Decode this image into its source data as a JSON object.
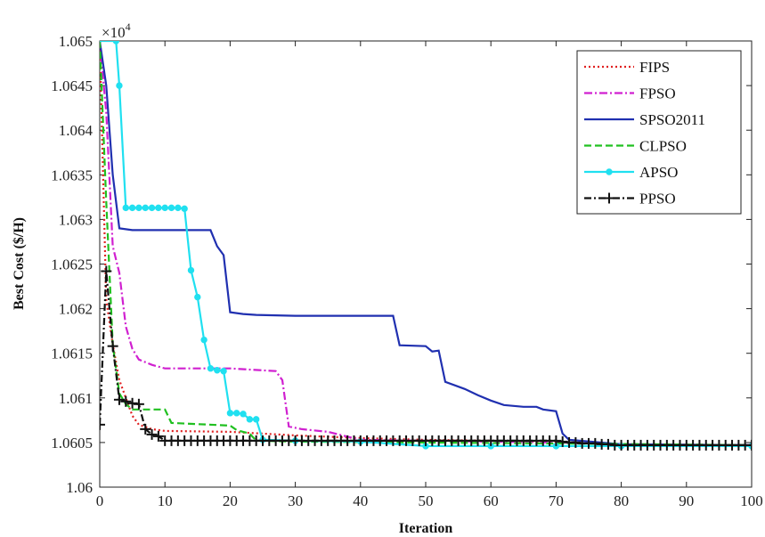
{
  "chart_data": {
    "type": "line",
    "title": "",
    "xlabel": "Iteration",
    "ylabel": "Best Cost ($/H)",
    "multiplier_label": "×10",
    "multiplier_exponent": "4",
    "xlim": [
      0,
      100
    ],
    "ylim": [
      1.06,
      1.065
    ],
    "xticks": [
      "0",
      "10",
      "20",
      "30",
      "40",
      "50",
      "60",
      "70",
      "80",
      "90",
      "100"
    ],
    "yticks": [
      "1.06",
      "1.0605",
      "1.061",
      "1.0615",
      "1.062",
      "1.0625",
      "1.063",
      "1.0635",
      "1.064",
      "1.0645",
      "1.065"
    ],
    "grid": false,
    "legend_position": "top-right",
    "series": [
      {
        "name": "FIPS",
        "color": "#e02020",
        "dash": "2,3",
        "marker": "none",
        "points": [
          [
            0,
            1.065
          ],
          [
            1,
            1.0621
          ],
          [
            2,
            1.0616
          ],
          [
            3,
            1.0612
          ],
          [
            4,
            1.061
          ],
          [
            5,
            1.0608
          ],
          [
            6,
            1.0607
          ],
          [
            8,
            1.06065
          ],
          [
            10,
            1.06063
          ],
          [
            20,
            1.06062
          ],
          [
            30,
            1.06058
          ],
          [
            40,
            1.06055
          ],
          [
            50,
            1.06053
          ],
          [
            60,
            1.06052
          ],
          [
            70,
            1.06051
          ],
          [
            75,
            1.06049
          ],
          [
            80,
            1.06048
          ],
          [
            100,
            1.06047
          ]
        ]
      },
      {
        "name": "FPSO",
        "color": "#d020d0",
        "dash": "9,3,2,3",
        "marker": "none",
        "points": [
          [
            0,
            1.065
          ],
          [
            1,
            1.0642
          ],
          [
            2,
            1.0627
          ],
          [
            3,
            1.0624
          ],
          [
            4,
            1.0618
          ],
          [
            5,
            1.06155
          ],
          [
            6,
            1.06143
          ],
          [
            8,
            1.06137
          ],
          [
            10,
            1.06133
          ],
          [
            20,
            1.06133
          ],
          [
            27,
            1.0613
          ],
          [
            28,
            1.0612
          ],
          [
            29,
            1.06068
          ],
          [
            31,
            1.06065
          ],
          [
            35,
            1.06062
          ],
          [
            40,
            1.06053
          ],
          [
            50,
            1.06052
          ],
          [
            60,
            1.06051
          ],
          [
            70,
            1.0605
          ],
          [
            80,
            1.06048
          ],
          [
            100,
            1.06047
          ]
        ]
      },
      {
        "name": "SPSO2011",
        "color": "#2030b0",
        "dash": "",
        "marker": "none",
        "points": [
          [
            0,
            1.065
          ],
          [
            1,
            1.0645
          ],
          [
            2,
            1.0635
          ],
          [
            3,
            1.0629
          ],
          [
            5,
            1.06288
          ],
          [
            10,
            1.06288
          ],
          [
            17,
            1.06288
          ],
          [
            18,
            1.0627
          ],
          [
            19,
            1.0626
          ],
          [
            20,
            1.06196
          ],
          [
            22,
            1.06194
          ],
          [
            24,
            1.06193
          ],
          [
            30,
            1.06192
          ],
          [
            45,
            1.06192
          ],
          [
            46,
            1.06159
          ],
          [
            50,
            1.06158
          ],
          [
            51,
            1.06152
          ],
          [
            52,
            1.06153
          ],
          [
            53,
            1.06118
          ],
          [
            56,
            1.0611
          ],
          [
            58,
            1.06103
          ],
          [
            60,
            1.06097
          ],
          [
            62,
            1.06092
          ],
          [
            65,
            1.0609
          ],
          [
            67,
            1.0609
          ],
          [
            68,
            1.06087
          ],
          [
            70,
            1.06085
          ],
          [
            71,
            1.0606
          ],
          [
            72,
            1.06053
          ],
          [
            80,
            1.06048
          ],
          [
            100,
            1.06047
          ]
        ]
      },
      {
        "name": "CLPSO",
        "color": "#20c020",
        "dash": "8,4",
        "marker": "none",
        "points": [
          [
            0,
            1.065
          ],
          [
            1,
            1.0632
          ],
          [
            2,
            1.0616
          ],
          [
            3,
            1.06105
          ],
          [
            4,
            1.06093
          ],
          [
            5,
            1.06087
          ],
          [
            10,
            1.06087
          ],
          [
            11,
            1.06072
          ],
          [
            20,
            1.06069
          ],
          [
            21,
            1.06064
          ],
          [
            22,
            1.06062
          ],
          [
            23,
            1.0606
          ],
          [
            24,
            1.06052
          ],
          [
            30,
            1.06051
          ],
          [
            50,
            1.0605
          ],
          [
            70,
            1.06049
          ],
          [
            100,
            1.06047
          ]
        ]
      },
      {
        "name": "APSO",
        "color": "#20e0f0",
        "dash": "",
        "marker": "dot",
        "points": [
          [
            0,
            1.065
          ],
          [
            2.5,
            1.065
          ],
          [
            3,
            1.0645
          ],
          [
            4,
            1.06313
          ],
          [
            5,
            1.06313
          ],
          [
            6,
            1.06313
          ],
          [
            7,
            1.06313
          ],
          [
            8,
            1.06313
          ],
          [
            9,
            1.06313
          ],
          [
            10,
            1.06313
          ],
          [
            11,
            1.06313
          ],
          [
            12,
            1.06313
          ],
          [
            13,
            1.06312
          ],
          [
            14,
            1.06243
          ],
          [
            15,
            1.06213
          ],
          [
            16,
            1.06165
          ],
          [
            17,
            1.06133
          ],
          [
            18,
            1.06131
          ],
          [
            19,
            1.0613
          ],
          [
            20,
            1.06083
          ],
          [
            21,
            1.06083
          ],
          [
            22,
            1.06082
          ],
          [
            23,
            1.06076
          ],
          [
            24,
            1.06076
          ],
          [
            25,
            1.06053
          ],
          [
            30,
            1.06052
          ],
          [
            40,
            1.06051
          ],
          [
            50,
            1.06046
          ],
          [
            60,
            1.06046
          ],
          [
            70,
            1.06046
          ],
          [
            80,
            1.06046
          ],
          [
            100,
            1.06046
          ]
        ]
      },
      {
        "name": "PPSO",
        "color": "#111111",
        "dash": "8,3,2,3",
        "marker": "plus",
        "points": [
          [
            0,
            1.0607
          ],
          [
            1,
            1.06242
          ],
          [
            2,
            1.06158
          ],
          [
            3,
            1.06098
          ],
          [
            4,
            1.06096
          ],
          [
            5,
            1.06094
          ],
          [
            6,
            1.06093
          ],
          [
            7,
            1.06065
          ],
          [
            8,
            1.06059
          ],
          [
            9,
            1.06057
          ],
          [
            10,
            1.06052
          ],
          [
            11,
            1.06052
          ],
          [
            12,
            1.06052
          ],
          [
            13,
            1.06052
          ],
          [
            14,
            1.06052
          ],
          [
            15,
            1.06052
          ],
          [
            16,
            1.06052
          ],
          [
            17,
            1.06052
          ],
          [
            18,
            1.06052
          ],
          [
            19,
            1.06052
          ],
          [
            20,
            1.06052
          ],
          [
            21,
            1.06052
          ],
          [
            22,
            1.06052
          ],
          [
            23,
            1.06052
          ],
          [
            24,
            1.06052
          ],
          [
            25,
            1.06052
          ],
          [
            26,
            1.06052
          ],
          [
            27,
            1.06052
          ],
          [
            28,
            1.06052
          ],
          [
            29,
            1.06052
          ],
          [
            30,
            1.06052
          ],
          [
            31,
            1.06052
          ],
          [
            32,
            1.06052
          ],
          [
            33,
            1.06052
          ],
          [
            34,
            1.06052
          ],
          [
            35,
            1.06052
          ],
          [
            36,
            1.06052
          ],
          [
            37,
            1.06052
          ],
          [
            38,
            1.06052
          ],
          [
            39,
            1.06052
          ],
          [
            40,
            1.06052
          ],
          [
            41,
            1.06052
          ],
          [
            42,
            1.06052
          ],
          [
            43,
            1.06052
          ],
          [
            44,
            1.06052
          ],
          [
            45,
            1.06052
          ],
          [
            46,
            1.06052
          ],
          [
            47,
            1.06052
          ],
          [
            48,
            1.06052
          ],
          [
            49,
            1.06052
          ],
          [
            50,
            1.06052
          ],
          [
            51,
            1.06052
          ],
          [
            52,
            1.06052
          ],
          [
            53,
            1.06052
          ],
          [
            54,
            1.06052
          ],
          [
            55,
            1.06052
          ],
          [
            56,
            1.06052
          ],
          [
            57,
            1.06052
          ],
          [
            58,
            1.06052
          ],
          [
            59,
            1.06052
          ],
          [
            60,
            1.06052
          ],
          [
            61,
            1.06052
          ],
          [
            62,
            1.06052
          ],
          [
            63,
            1.06052
          ],
          [
            64,
            1.06052
          ],
          [
            65,
            1.06052
          ],
          [
            66,
            1.06052
          ],
          [
            67,
            1.06052
          ],
          [
            68,
            1.06052
          ],
          [
            69,
            1.06052
          ],
          [
            70,
            1.06052
          ],
          [
            71,
            1.06051
          ],
          [
            72,
            1.0605
          ],
          [
            73,
            1.0605
          ],
          [
            74,
            1.06049
          ],
          [
            75,
            1.06049
          ],
          [
            76,
            1.06049
          ],
          [
            77,
            1.06048
          ],
          [
            78,
            1.06048
          ],
          [
            79,
            1.06047
          ],
          [
            80,
            1.06047
          ],
          [
            81,
            1.06047
          ],
          [
            82,
            1.06047
          ],
          [
            83,
            1.06047
          ],
          [
            84,
            1.06047
          ],
          [
            85,
            1.06047
          ],
          [
            86,
            1.06047
          ],
          [
            87,
            1.06047
          ],
          [
            88,
            1.06047
          ],
          [
            89,
            1.06047
          ],
          [
            90,
            1.06047
          ],
          [
            91,
            1.06047
          ],
          [
            92,
            1.06047
          ],
          [
            93,
            1.06047
          ],
          [
            94,
            1.06047
          ],
          [
            95,
            1.06047
          ],
          [
            96,
            1.06047
          ],
          [
            97,
            1.06047
          ],
          [
            98,
            1.06047
          ],
          [
            99,
            1.06047
          ],
          [
            100,
            1.06047
          ]
        ]
      }
    ]
  }
}
